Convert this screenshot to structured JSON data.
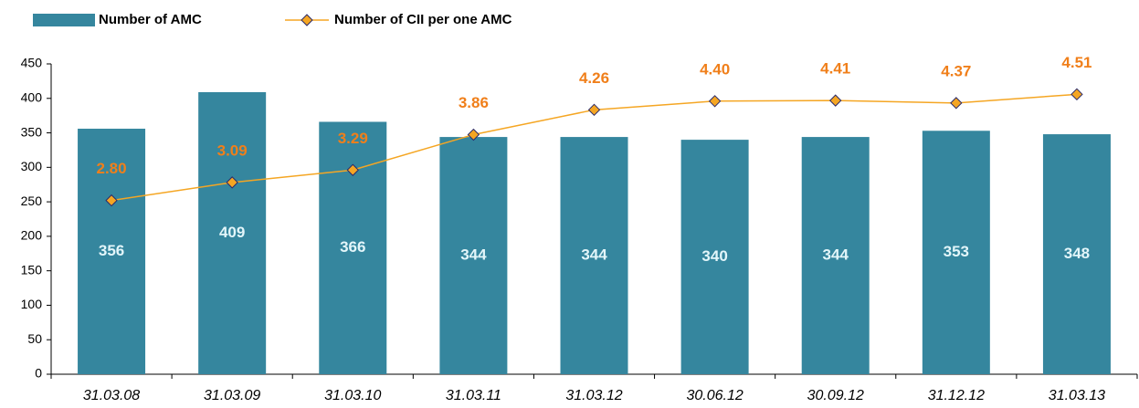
{
  "chart_data": {
    "type": "bar",
    "categories": [
      "31.03.08",
      "31.03.09",
      "31.03.10",
      "31.03.11",
      "31.03.12",
      "30.06.12",
      "30.09.12",
      "31.12.12",
      "31.03.13"
    ],
    "series": [
      {
        "name": "Number of AMC",
        "type": "bar",
        "color": "#35869e",
        "values": [
          356,
          409,
          366,
          344,
          344,
          340,
          344,
          353,
          348
        ]
      },
      {
        "name": "Number of CII per one AMC",
        "type": "line",
        "axis": "y2",
        "color": "#f5a623",
        "marker_color": "#f5a623",
        "values": [
          2.8,
          3.09,
          3.29,
          3.86,
          4.26,
          4.4,
          4.41,
          4.37,
          4.51
        ],
        "value_labels": [
          "2.80",
          "3.09",
          "3.29",
          "3.86",
          "4.26",
          "4.40",
          "4.41",
          "4.37",
          "4.51"
        ]
      }
    ],
    "ylim": [
      0,
      450
    ],
    "yticks": [
      0,
      50,
      100,
      150,
      200,
      250,
      300,
      350,
      400,
      450
    ],
    "y2lim": [
      0,
      5
    ],
    "legend": "top"
  }
}
